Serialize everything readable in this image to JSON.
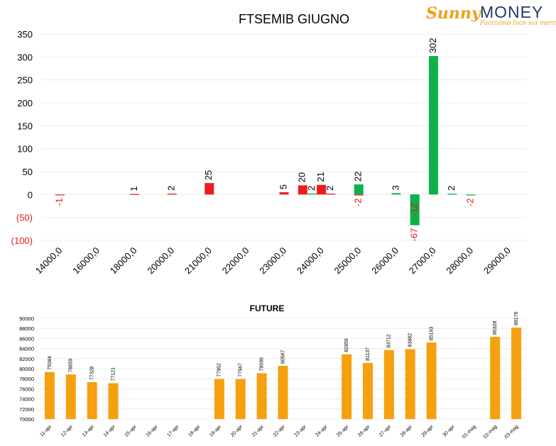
{
  "logo": {
    "sunny": "Sunny",
    "money": "MONEY",
    "tagline": "Facciamo luce sui mercati"
  },
  "colors": {
    "put": "#ee1c1c",
    "call": "#0db14b",
    "future": "#f5a00f",
    "negative_label": "#e31a1a",
    "text": "#000000"
  },
  "chart_data": [
    {
      "type": "bar",
      "title": "FTSEMIB GIUGNO",
      "ylim": [
        -100,
        350
      ],
      "yticks": [
        {
          "value": 350,
          "label": "350"
        },
        {
          "value": 300,
          "label": "300"
        },
        {
          "value": 250,
          "label": "250"
        },
        {
          "value": 200,
          "label": "200"
        },
        {
          "value": 150,
          "label": "150"
        },
        {
          "value": 100,
          "label": "100"
        },
        {
          "value": 50,
          "label": "50"
        },
        {
          "value": 0,
          "label": "0"
        },
        {
          "value": -50,
          "label": "(50)"
        },
        {
          "value": -100,
          "label": "(100)"
        }
      ],
      "categories": [
        "14000,0",
        "16000,0",
        "18000,0",
        "20000,0",
        "21000,0",
        "22000,0",
        "23000,0",
        "24000,0",
        "25000,0",
        "26000,0",
        "27000,0",
        "28000,0",
        "29000,0"
      ],
      "grid": true,
      "series": [
        {
          "color": "put",
          "values": [
            {
              "category": "14000,0",
              "value": -1
            },
            {
              "category": "18000,0",
              "value": 1
            },
            {
              "category": "20000,0",
              "value": 2
            },
            {
              "category": "21000,0",
              "value": 25
            },
            {
              "category": "23000,0",
              "value": 5
            },
            {
              "category": "23000,0",
              "value": 20,
              "offset": 1
            },
            {
              "category": "24000,0",
              "value": 21
            },
            {
              "category": "24000,0",
              "value": 2,
              "offset": 0.5
            },
            {
              "category": "25000,0",
              "value": -2
            }
          ]
        },
        {
          "color": "call",
          "values": [
            {
              "category": "24000,0",
              "value": 2,
              "offset": -0.5
            },
            {
              "category": "25000,0",
              "value": 22
            },
            {
              "category": "26000,0",
              "value": 3
            },
            {
              "category": "26000,0",
              "value": -67,
              "offset": 1
            },
            {
              "category": "27000,0",
              "value": -12,
              "offset": -1
            },
            {
              "category": "27000,0",
              "value": 302
            },
            {
              "category": "27000,0",
              "value": 2,
              "offset": 1
            },
            {
              "category": "28000,0",
              "value": -2
            }
          ]
        }
      ]
    },
    {
      "type": "bar",
      "title": "FUTURE",
      "ylim": [
        70000,
        90000
      ],
      "yticks": [
        "90000",
        "88000",
        "86000",
        "84000",
        "82000",
        "80000",
        "78000",
        "76000",
        "74000",
        "72000",
        "70000"
      ],
      "categories": [
        "11-apr",
        "12-apr",
        "13-apr",
        "14-apr",
        "15-apr",
        "16-apr",
        "17-apr",
        "18-apr",
        "19-apr",
        "20-apr",
        "21-apr",
        "22-apr",
        "23-apr",
        "24-apr",
        "25-apr",
        "26-apr",
        "27-apr",
        "28-apr",
        "29-apr",
        "30-apr",
        "01-mag",
        "02-mag",
        "03-mag"
      ],
      "values": [
        79344,
        78859,
        77328,
        77121,
        null,
        null,
        null,
        null,
        77952,
        77947,
        79096,
        80567,
        null,
        null,
        82859,
        81137,
        83712,
        83882,
        85193,
        null,
        null,
        86328,
        88176
      ],
      "grid": true
    }
  ]
}
